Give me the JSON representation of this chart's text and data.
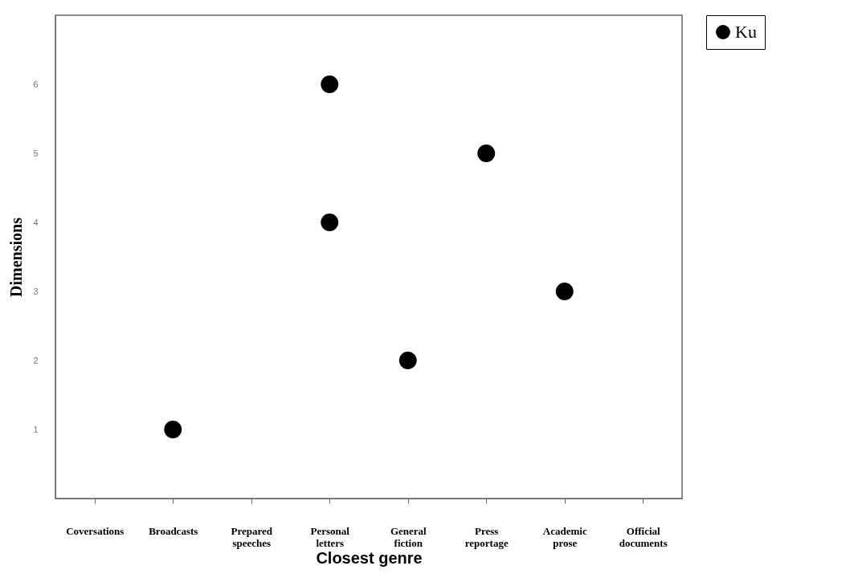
{
  "chart_data": {
    "type": "scatter",
    "xlabel": "Closest genre",
    "ylabel": "Dimensions",
    "categories": [
      "Coversations",
      "Broadcasts",
      "Prepared speeches",
      "Personal letters",
      "General fiction",
      "Press reportage",
      "Academic prose",
      "Official documents"
    ],
    "series": [
      {
        "name": "Ku",
        "color": "#000000",
        "x": [
          "Broadcasts",
          "Personal letters",
          "Personal letters",
          "General fiction",
          "Press reportage",
          "Academic prose"
        ],
        "values": [
          1,
          6,
          4,
          2,
          5,
          3
        ]
      }
    ],
    "ylim": [
      0,
      7
    ],
    "yticks": [
      1,
      2,
      3,
      4,
      5,
      6
    ],
    "grid": false,
    "legend": "top right",
    "marker": "circle"
  }
}
